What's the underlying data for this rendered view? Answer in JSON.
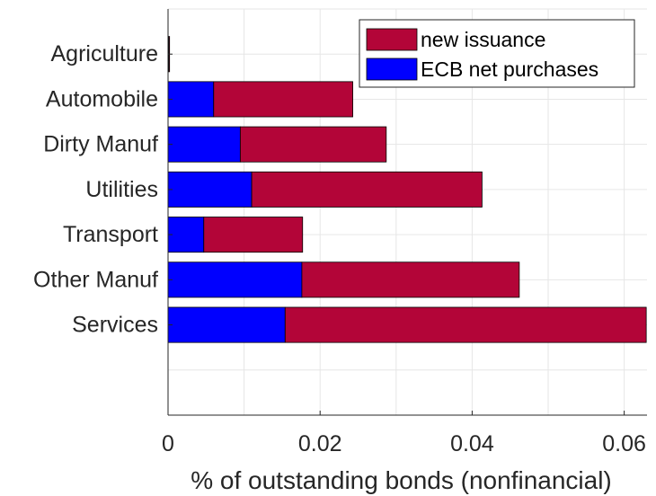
{
  "chart_data": {
    "type": "bar",
    "orientation": "horizontal",
    "stacked": true,
    "categories": [
      "Agriculture",
      "Automobile",
      "Dirty Manuf",
      "Utilities",
      "Transport",
      "Other Manuf",
      "Services"
    ],
    "series": [
      {
        "name": "ECB net purchases",
        "color": "#0000ff",
        "values": [
          0.0001,
          0.006,
          0.0095,
          0.011,
          0.0047,
          0.0176,
          0.0154
        ]
      },
      {
        "name": "new issuance",
        "color": "#b30538",
        "values": [
          0.0001,
          0.0183,
          0.0192,
          0.0303,
          0.013,
          0.0286,
          0.0475
        ]
      }
    ],
    "title": "",
    "xlabel": "% of outstanding bonds (nonfinancial)",
    "ylabel": "",
    "xlim": [
      0,
      0.063
    ],
    "xticks": [
      0,
      0.02,
      0.04,
      0.06
    ],
    "xtick_labels": [
      "0",
      "0.02",
      "0.04",
      "0.06"
    ],
    "grid": true,
    "legend_position": "top-right"
  }
}
